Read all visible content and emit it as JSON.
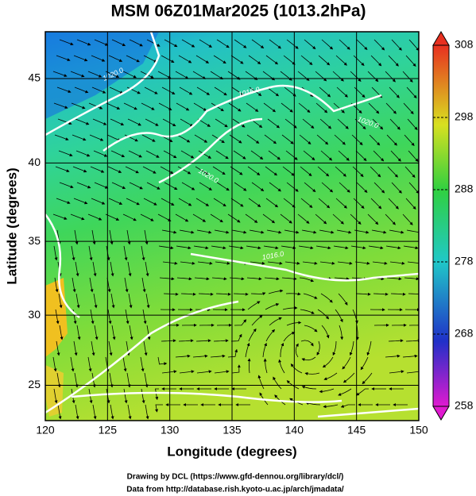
{
  "map": {
    "title": "MSM 06Z01Mar2025 (1013.2hPa)",
    "xaxis": {
      "label": "Longitude (degrees)",
      "xlim": [
        120,
        150
      ],
      "ticks": [
        120,
        125,
        130,
        135,
        140,
        145,
        150
      ]
    },
    "yaxis": {
      "label": "Latitude  (degrees)",
      "ylim": [
        22.4,
        47.6
      ],
      "ticks": [
        25,
        30,
        35,
        40,
        45
      ]
    },
    "colorbar": {
      "lim": [
        258,
        308
      ],
      "ticks": [
        258,
        268,
        278,
        288,
        298,
        308
      ]
    },
    "contour_labels": [
      "1020.0",
      "1016.0",
      "1020.0",
      "1016.0",
      "1020.0"
    ],
    "credits": [
      "Drawing by DCL (https://www.gfd-dennou.org/library/dcl/)",
      "Data from http://database.rish.kyoto-u.ac.jp/arch/jmadata/"
    ]
  }
}
